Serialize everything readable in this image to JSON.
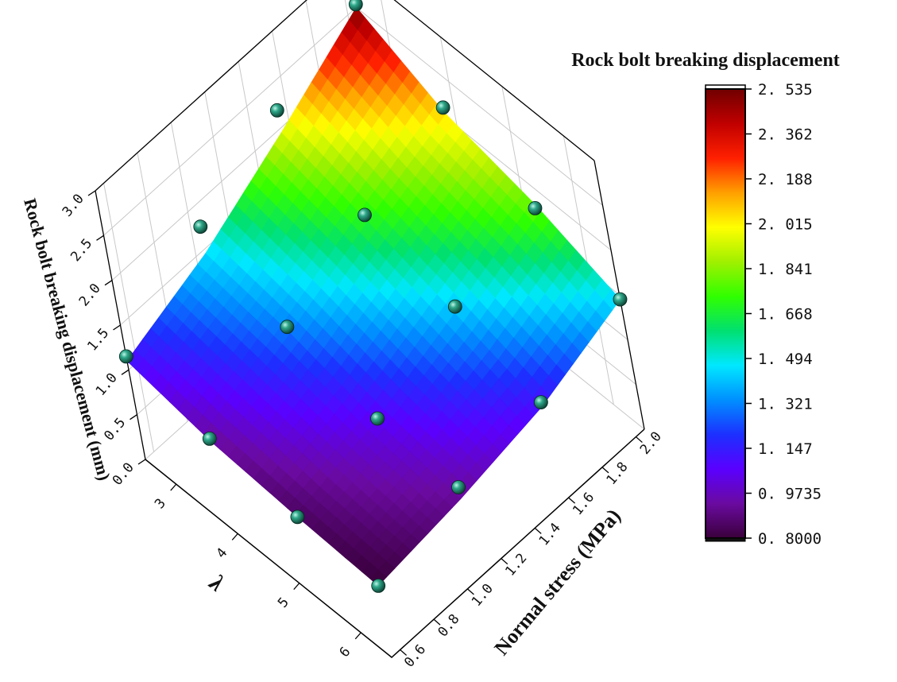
{
  "chart_data": {
    "type": "surface3d",
    "title": "",
    "zlabel": "Rock bolt breaking displacement (mm)",
    "xlabel": "λ",
    "ylabel": "Normal stress (MPa)",
    "x_ticks": [
      "3",
      "4",
      "5",
      "6"
    ],
    "y_ticks": [
      "0.6",
      "0.8",
      "1.0",
      "1.2",
      "1.4",
      "1.6",
      "1.8",
      "2.0"
    ],
    "z_ticks": [
      "0.0",
      "0.5",
      "1.0",
      "1.5",
      "2.0",
      "2.5",
      "3.0"
    ],
    "xlim": [
      2.5,
      6.5
    ],
    "ylim": [
      0.55,
      2.05
    ],
    "zlim": [
      0,
      3
    ],
    "grid": true,
    "colorbar": {
      "title": "Rock bolt breaking displacement",
      "ticks": [
        "2. 535",
        "2. 362",
        "2. 188",
        "2. 015",
        "1. 841",
        "1. 668",
        "1. 494",
        "1. 321",
        "1. 147",
        "0. 9735",
        "0. 8000"
      ],
      "min": 0.8,
      "max": 2.535,
      "colors": [
        "#3a003a",
        "#6a0aa0",
        "#5a00ff",
        "#1c30ff",
        "#0090ff",
        "#00e8ff",
        "#00e070",
        "#30ff00",
        "#a0f000",
        "#ffff00",
        "#ffa000",
        "#ff2000",
        "#c00000",
        "#700000"
      ]
    },
    "surface": {
      "x": [
        2.5,
        3.8,
        5.2,
        6.5
      ],
      "y": [
        0.55,
        1.05,
        1.55,
        2.05
      ],
      "z": [
        [
          1.1,
          1.45,
          1.95,
          2.5
        ],
        [
          0.93,
          1.3,
          1.7,
          2.05
        ],
        [
          0.85,
          1.05,
          1.4,
          1.8
        ],
        [
          0.8,
          0.92,
          1.1,
          1.45
        ]
      ]
    },
    "points": [
      {
        "x": 2.5,
        "y": 2.05,
        "z": 2.535
      },
      {
        "x": 2.5,
        "y": 1.55,
        "z": 2.2
      },
      {
        "x": 2.5,
        "y": 1.05,
        "z": 1.75
      },
      {
        "x": 2.5,
        "y": 0.55,
        "z": 1.15
      },
      {
        "x": 3.8,
        "y": 2.05,
        "z": 2.1
      },
      {
        "x": 3.8,
        "y": 1.55,
        "z": 1.75
      },
      {
        "x": 3.8,
        "y": 1.05,
        "z": 1.35
      },
      {
        "x": 3.8,
        "y": 0.55,
        "z": 0.95
      },
      {
        "x": 5.2,
        "y": 2.05,
        "z": 1.75
      },
      {
        "x": 5.2,
        "y": 1.55,
        "z": 1.5
      },
      {
        "x": 5.2,
        "y": 1.05,
        "z": 1.1
      },
      {
        "x": 5.2,
        "y": 0.55,
        "z": 0.85
      },
      {
        "x": 6.5,
        "y": 2.05,
        "z": 1.45
      },
      {
        "x": 6.5,
        "y": 1.55,
        "z": 1.15
      },
      {
        "x": 6.5,
        "y": 1.05,
        "z": 1.05
      },
      {
        "x": 6.5,
        "y": 0.55,
        "z": 0.8
      }
    ]
  }
}
